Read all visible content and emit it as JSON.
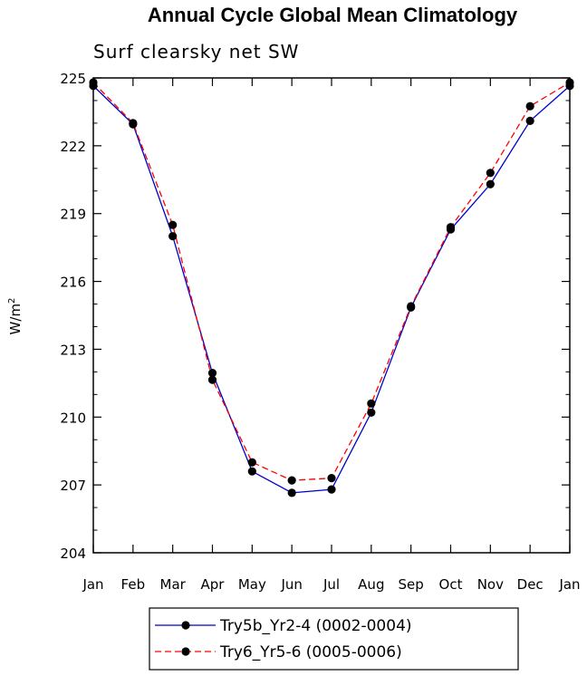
{
  "chart_data": {
    "type": "line",
    "title": "Annual Cycle Global Mean Climatology",
    "subtitle": "Surf clearsky net SW",
    "ylabel": "W/m",
    "ylabel_sup": "2",
    "xlabel": "",
    "categories": [
      "Jan",
      "Feb",
      "Mar",
      "Apr",
      "May",
      "Jun",
      "Jul",
      "Aug",
      "Sep",
      "Oct",
      "Nov",
      "Dec",
      "Jan"
    ],
    "ylim": [
      204,
      225
    ],
    "yticks": [
      204,
      207,
      210,
      213,
      216,
      219,
      222,
      225
    ],
    "yticks_minor_step": 1,
    "grid": false,
    "legend_position": "bottom-center",
    "series": [
      {
        "name": "Try5b_Yr2-4 (0002-0004)",
        "color": "#0000cc",
        "dash": "solid",
        "values": [
          224.65,
          222.95,
          218.0,
          211.95,
          207.6,
          206.65,
          206.8,
          210.2,
          214.85,
          218.3,
          220.3,
          223.1,
          224.65
        ]
      },
      {
        "name": "Try6_Yr5-6 (0005-0006)",
        "color": "#ff0000",
        "dash": "dashed",
        "values": [
          224.8,
          223.0,
          218.5,
          211.65,
          208.0,
          207.2,
          207.3,
          210.6,
          214.9,
          218.4,
          220.8,
          223.75,
          224.8
        ]
      }
    ]
  }
}
